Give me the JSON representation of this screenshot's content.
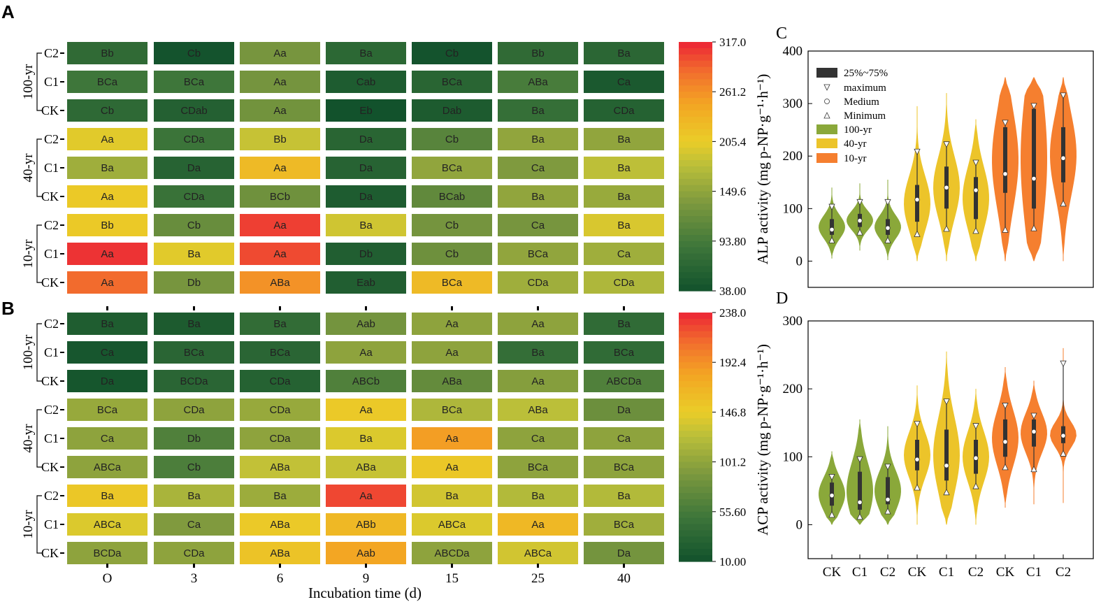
{
  "panels": {
    "A": "A",
    "B": "B",
    "C": "C",
    "D": "D"
  },
  "chart_data": [
    {
      "type": "heatmap",
      "panel": "A",
      "columns": [
        "O",
        "3",
        "6",
        "9",
        "15",
        "25",
        "40"
      ],
      "rows": [
        "C2",
        "C1",
        "CK",
        "C2",
        "C1",
        "CK",
        "C2",
        "C1",
        "CK"
      ],
      "groups": [
        {
          "name": "100-yr",
          "rows": [
            0,
            1,
            2
          ]
        },
        {
          "name": "40-yr",
          "rows": [
            3,
            4,
            5
          ]
        },
        {
          "name": "10-yr",
          "rows": [
            6,
            7,
            8
          ]
        }
      ],
      "labels": [
        [
          "Bb",
          "Cb",
          "Aa",
          "Ba",
          "Cb",
          "Bb",
          "Ba"
        ],
        [
          "BCa",
          "BCa",
          "Aa",
          "Cab",
          "BCa",
          "ABa",
          "Ca"
        ],
        [
          "Cb",
          "CDab",
          "Aa",
          "Eb",
          "Dab",
          "Ba",
          "CDa"
        ],
        [
          "Aa",
          "CDa",
          "Bb",
          "Da",
          "Cb",
          "Ba",
          "Ba"
        ],
        [
          "Ba",
          "Da",
          "Aa",
          "Da",
          "BCa",
          "Ca",
          "Ba"
        ],
        [
          "Aa",
          "CDa",
          "BCb",
          "Da",
          "BCab",
          "Ba",
          "Ba"
        ],
        [
          "Bb",
          "Cb",
          "Aa",
          "Ba",
          "Cb",
          "Ca",
          "Ba"
        ],
        [
          "Aa",
          "Ba",
          "Aa",
          "Db",
          "Cb",
          "BCa",
          "Ca"
        ],
        [
          "Aa",
          "Db",
          "ABa",
          "Eab",
          "BCa",
          "CDa",
          "CDa"
        ]
      ],
      "values": [
        [
          72,
          40,
          132,
          68,
          40,
          72,
          66
        ],
        [
          88,
          88,
          130,
          52,
          64,
          96,
          48
        ],
        [
          70,
          58,
          128,
          38,
          50,
          78,
          60
        ],
        [
          200,
          85,
          185,
          64,
          108,
          150,
          150
        ],
        [
          160,
          62,
          225,
          62,
          150,
          138,
          180
        ],
        [
          210,
          82,
          126,
          52,
          115,
          150,
          155
        ],
        [
          210,
          120,
          305,
          190,
          130,
          132,
          195
        ],
        [
          310,
          200,
          300,
          55,
          125,
          150,
          160
        ],
        [
          285,
          132,
          260,
          55,
          225,
          160,
          170
        ]
      ],
      "colorbar": {
        "min": 38.0,
        "max": 317.0,
        "ticks": [
          "317.0",
          "261.2",
          "205.4",
          "149.6",
          "93.80",
          "38.00"
        ]
      }
    },
    {
      "type": "heatmap",
      "panel": "B",
      "columns": [
        "O",
        "3",
        "6",
        "9",
        "15",
        "25",
        "40"
      ],
      "rows": [
        "C2",
        "C1",
        "CK",
        "C2",
        "C1",
        "CK",
        "C2",
        "C1",
        "CK"
      ],
      "groups": [
        {
          "name": "100-yr",
          "rows": [
            0,
            1,
            2
          ]
        },
        {
          "name": "40-yr",
          "rows": [
            3,
            4,
            5
          ]
        },
        {
          "name": "10-yr",
          "rows": [
            6,
            7,
            8
          ]
        }
      ],
      "labels": [
        [
          "Ba",
          "Ba",
          "Ba",
          "Aab",
          "Aa",
          "Aa",
          "Ba"
        ],
        [
          "Ca",
          "BCa",
          "BCa",
          "Aa",
          "Aa",
          "Ba",
          "BCa"
        ],
        [
          "Da",
          "BCDa",
          "CDa",
          "ABCb",
          "ABa",
          "Aa",
          "ABCDa"
        ],
        [
          "BCa",
          "CDa",
          "CDa",
          "Aa",
          "BCa",
          "ABa",
          "Da"
        ],
        [
          "Ca",
          "Db",
          "CDa",
          "Ba",
          "Aa",
          "Ca",
          "Ca"
        ],
        [
          "ABCa",
          "Cb",
          "ABa",
          "ABa",
          "Aa",
          "BCa",
          "BCa"
        ],
        [
          "Ba",
          "Ba",
          "Ba",
          "Aa",
          "Ba",
          "Ba",
          "Ba"
        ],
        [
          "ABCa",
          "Ca",
          "ABa",
          "ABb",
          "ABCa",
          "Aa",
          "BCa"
        ],
        [
          "BCDa",
          "CDa",
          "ABa",
          "Aab",
          "ABCDa",
          "ABCa",
          "Da"
        ]
      ],
      "values": [
        [
          22,
          20,
          40,
          85,
          100,
          100,
          38
        ],
        [
          15,
          32,
          32,
          100,
          100,
          42,
          38
        ],
        [
          14,
          32,
          28,
          62,
          75,
          95,
          62
        ],
        [
          105,
          100,
          105,
          150,
          118,
          125,
          80
        ],
        [
          100,
          62,
          100,
          140,
          185,
          100,
          100
        ],
        [
          100,
          60,
          128,
          130,
          152,
          100,
          100
        ],
        [
          152,
          115,
          108,
          225,
          135,
          120,
          120
        ],
        [
          140,
          92,
          150,
          165,
          140,
          165,
          110
        ],
        [
          100,
          100,
          155,
          180,
          100,
          135,
          85
        ]
      ],
      "colorbar": {
        "min": 10.0,
        "max": 238.0,
        "ticks": [
          "238.0",
          "192.4",
          "146.8",
          "101.2",
          "55.60",
          "10.00"
        ]
      }
    },
    {
      "type": "violin",
      "panel": "C",
      "categories": [
        "CK",
        "C1",
        "C2",
        "CK",
        "C1",
        "C2",
        "CK",
        "C1",
        "C2"
      ],
      "groups": [
        "100-yr",
        "100-yr",
        "100-yr",
        "40-yr",
        "40-yr",
        "40-yr",
        "10-yr",
        "10-yr",
        "10-yr"
      ],
      "ylabel": "ALP activity (mg p-NP·g⁻¹·h⁻¹)",
      "ylim": [
        -50,
        400
      ],
      "yticks": [
        0,
        100,
        200,
        300,
        400
      ],
      "stats": [
        {
          "min": 40,
          "q1": 50,
          "median": 60,
          "q3": 80,
          "max": 103,
          "lo": 5,
          "hi": 140
        },
        {
          "min": 55,
          "q1": 65,
          "median": 77,
          "q3": 90,
          "max": 112,
          "lo": 20,
          "hi": 148
        },
        {
          "min": 40,
          "q1": 50,
          "median": 63,
          "q3": 80,
          "max": 112,
          "lo": 2,
          "hi": 155
        },
        {
          "min": 52,
          "q1": 75,
          "median": 117,
          "q3": 145,
          "max": 208,
          "lo": 0,
          "hi": 295
        },
        {
          "min": 62,
          "q1": 100,
          "median": 140,
          "q3": 180,
          "max": 222,
          "lo": 0,
          "hi": 320
        },
        {
          "min": 58,
          "q1": 80,
          "median": 135,
          "q3": 160,
          "max": 187,
          "lo": 0,
          "hi": 270
        },
        {
          "min": 60,
          "q1": 130,
          "median": 166,
          "q3": 255,
          "max": 263,
          "lo": 0,
          "hi": 350
        },
        {
          "min": 63,
          "q1": 100,
          "median": 157,
          "q3": 290,
          "max": 295,
          "lo": 0,
          "hi": 350
        },
        {
          "min": 110,
          "q1": 150,
          "median": 196,
          "q3": 255,
          "max": 315,
          "lo": 0,
          "hi": 350
        }
      ]
    },
    {
      "type": "violin",
      "panel": "D",
      "categories": [
        "CK",
        "C1",
        "C2",
        "CK",
        "C1",
        "C2",
        "CK",
        "C1",
        "C2"
      ],
      "groups": [
        "100-yr",
        "100-yr",
        "100-yr",
        "40-yr",
        "40-yr",
        "40-yr",
        "10-yr",
        "10-yr",
        "10-yr"
      ],
      "ylabel": "ACP activity (mg p-NP·g⁻¹·h⁻¹)",
      "ylim": [
        -50,
        300
      ],
      "yticks": [
        0,
        100,
        200,
        300
      ],
      "stats": [
        {
          "min": 15,
          "q1": 28,
          "median": 43,
          "q3": 62,
          "max": 70,
          "lo": 0,
          "hi": 108
        },
        {
          "min": 12,
          "q1": 22,
          "median": 33,
          "q3": 78,
          "max": 96,
          "lo": 0,
          "hi": 155
        },
        {
          "min": 20,
          "q1": 30,
          "median": 37,
          "q3": 70,
          "max": 85,
          "lo": 0,
          "hi": 145
        },
        {
          "min": 55,
          "q1": 80,
          "median": 96,
          "q3": 125,
          "max": 148,
          "lo": 0,
          "hi": 205
        },
        {
          "min": 48,
          "q1": 65,
          "median": 87,
          "q3": 140,
          "max": 181,
          "lo": 0,
          "hi": 255
        },
        {
          "min": 57,
          "q1": 75,
          "median": 98,
          "q3": 125,
          "max": 145,
          "lo": 0,
          "hi": 200
        },
        {
          "min": 85,
          "q1": 100,
          "median": 122,
          "q3": 155,
          "max": 175,
          "lo": 25,
          "hi": 232
        },
        {
          "min": 82,
          "q1": 115,
          "median": 137,
          "q3": 155,
          "max": 160,
          "lo": 30,
          "hi": 212
        },
        {
          "min": 105,
          "q1": 120,
          "median": 131,
          "q3": 145,
          "max": 237,
          "lo": 32,
          "hi": 260
        }
      ]
    }
  ],
  "heatmap_xlabel": "Incubation time (d)",
  "legend": {
    "items": [
      "25%~75%",
      "maximum",
      "Medium",
      "Minimum",
      "100-yr",
      "40-yr",
      "10-yr"
    ],
    "colors": {
      "100-yr": "#8aa83a",
      "40-yr": "#ecc42a",
      "10-yr": "#f57f2f",
      "box": "#333333"
    }
  }
}
